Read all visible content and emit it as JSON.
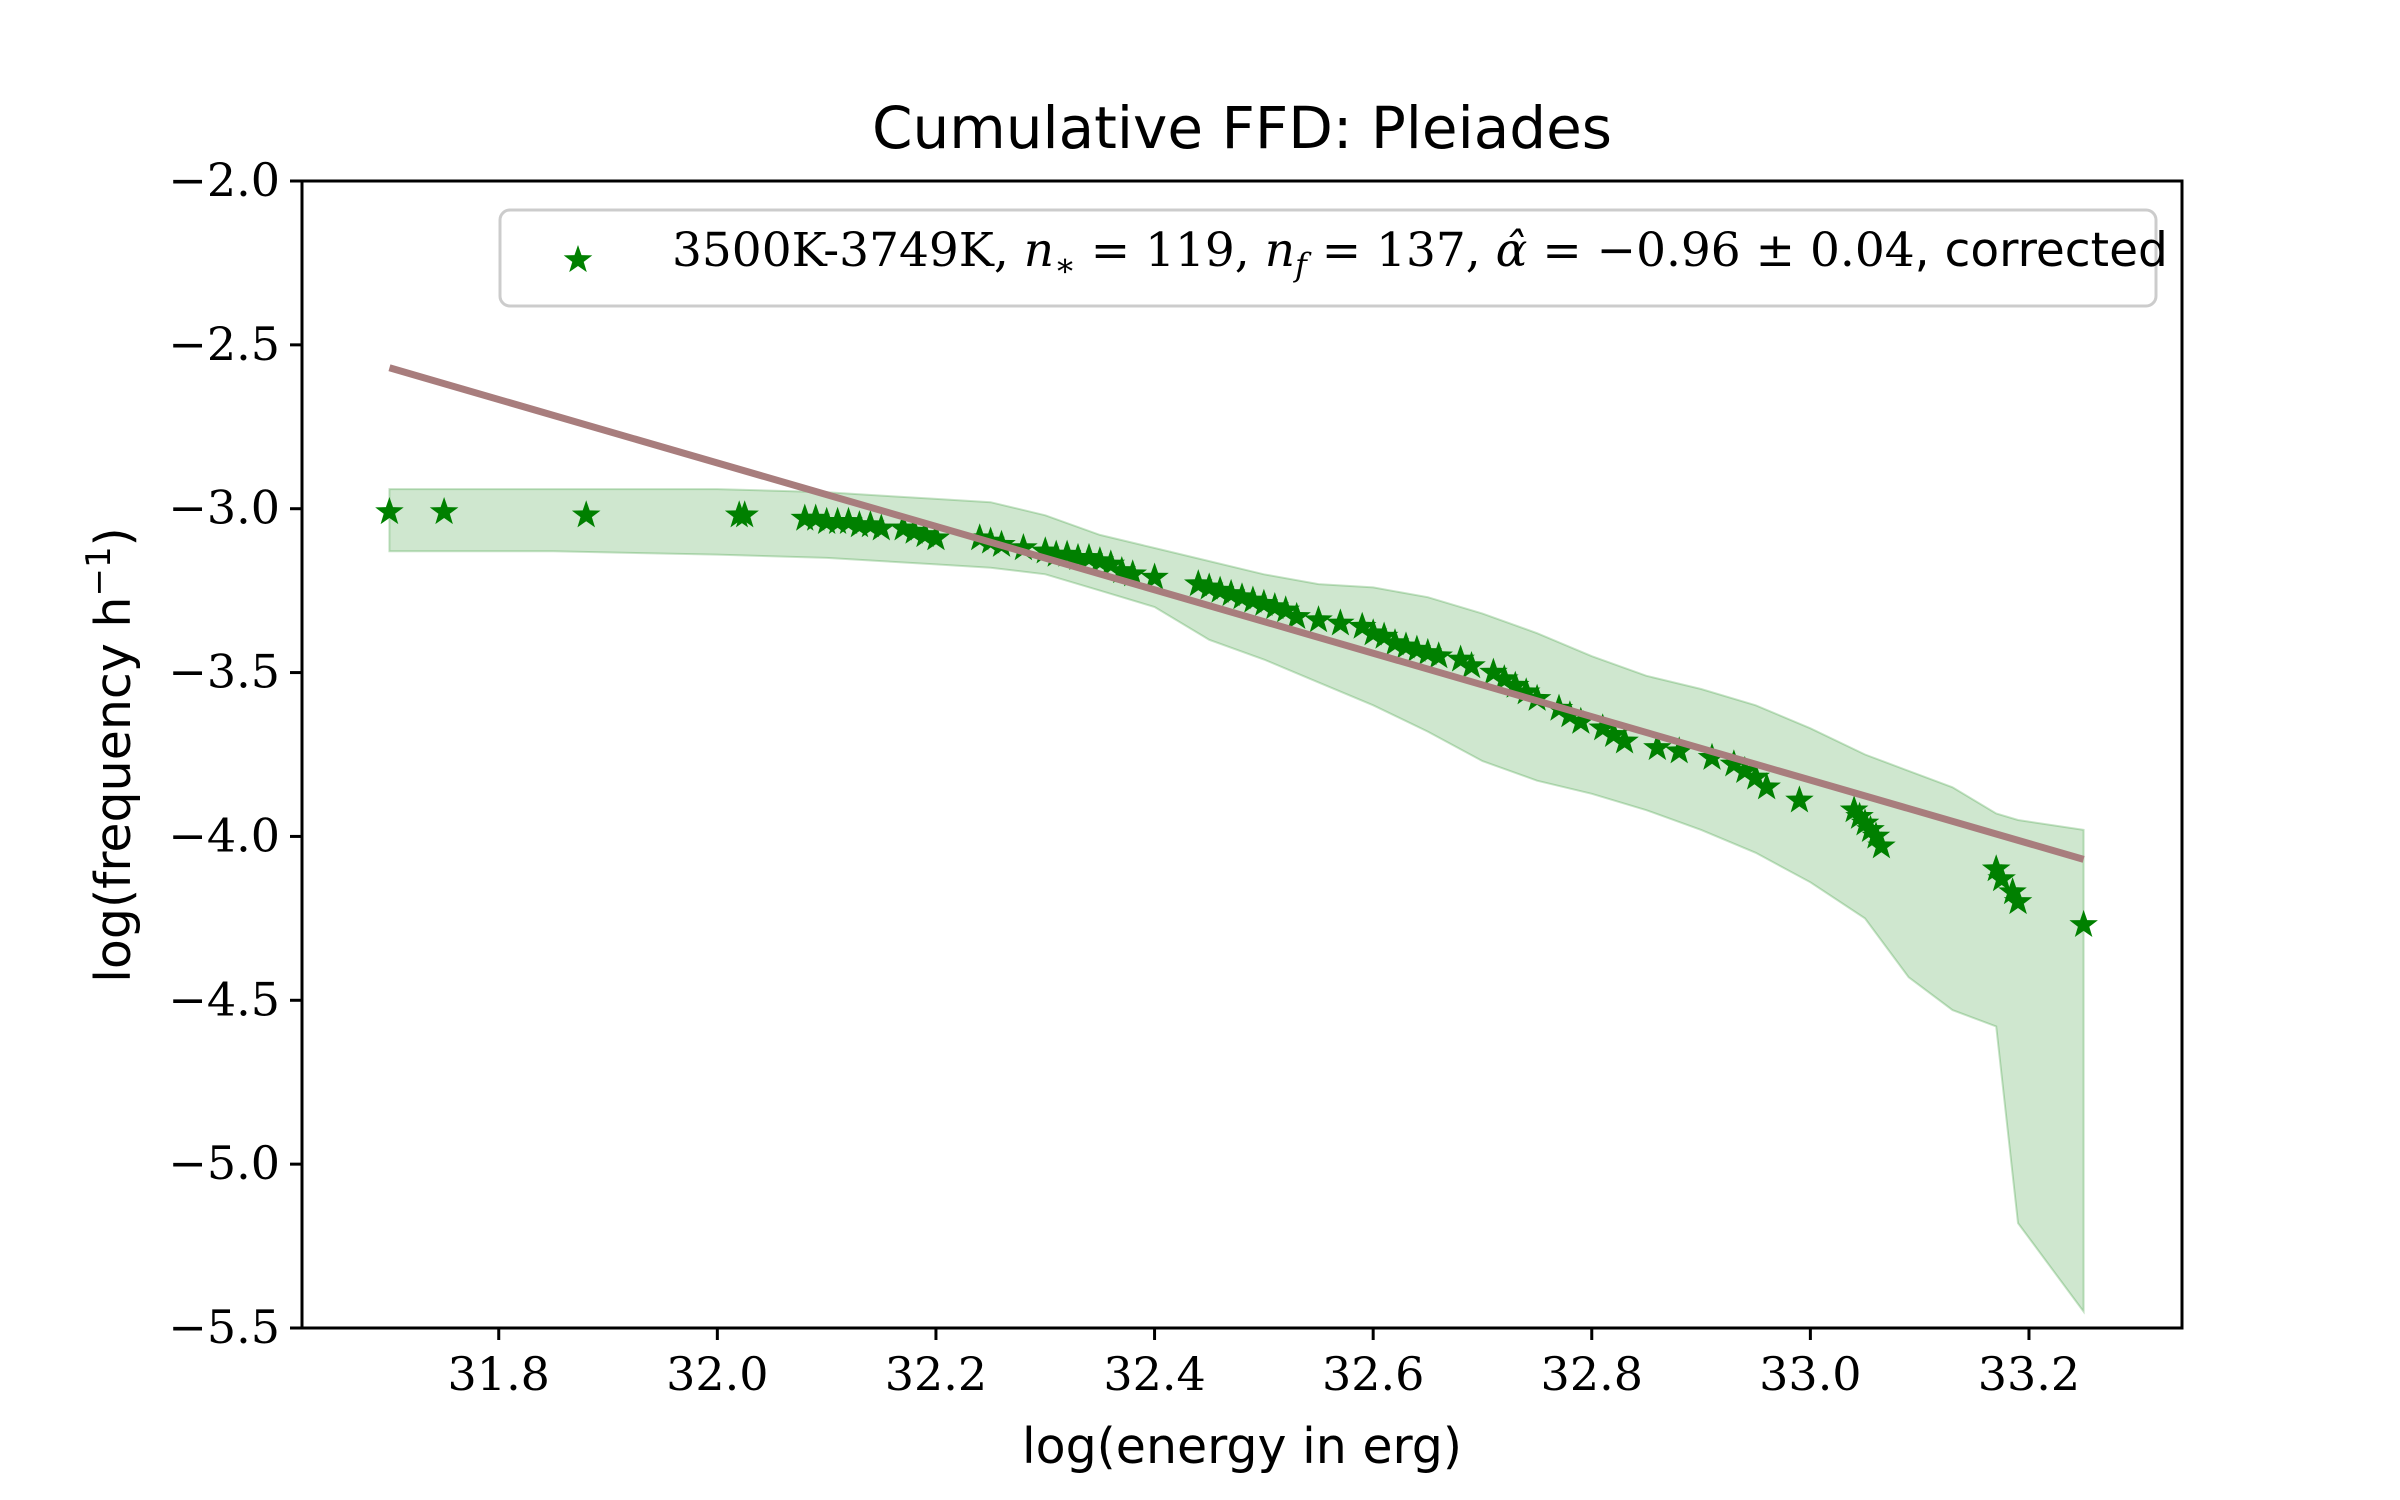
{
  "chart_data": {
    "type": "scatter",
    "title": "Cumulative FFD: Pleiades",
    "xlabel": "log(energy in erg)",
    "ylabel": {
      "text": "log(frequency h",
      "sup": "−1",
      "close": ")"
    },
    "xlim": [
      31.62,
      33.34
    ],
    "ylim": [
      -5.5,
      -2.0
    ],
    "x_ticks": [
      31.8,
      32.0,
      32.2,
      32.4,
      32.6,
      32.8,
      33.0,
      33.2
    ],
    "x_tick_labels": [
      "31.8",
      "32.0",
      "32.2",
      "32.4",
      "32.6",
      "32.8",
      "33.0",
      "33.2"
    ],
    "y_ticks": [
      -2.0,
      -2.5,
      -3.0,
      -3.5,
      -4.0,
      -4.5,
      -5.0,
      -5.5
    ],
    "y_tick_labels": [
      "−2.0",
      "−2.5",
      "−3.0",
      "−3.5",
      "−4.0",
      "−4.5",
      "−5.0",
      "−5.5"
    ],
    "grid": false,
    "legend_placement": "top-right",
    "legend": {
      "range": "3500K-3749K, ",
      "nstar_sym": "n",
      "nstar_sub": "∗",
      "nstar_val": " = 119, ",
      "nf_sym": "n",
      "nf_sub": "f",
      "nf_val": " = 137, ",
      "alpha_sym": "α̂",
      "alpha_val": " = −0.96 ± 0.04",
      "suffix": ", corrected"
    },
    "colors": {
      "points": "#008000",
      "band_fill": "#008000",
      "fit_line": "#a87d7d"
    },
    "series": [
      {
        "marker": "star",
        "x": [
          31.7,
          31.75,
          31.88,
          32.02,
          32.025,
          32.08,
          32.09,
          32.1,
          32.11,
          32.12,
          32.13,
          32.14,
          32.15,
          32.17,
          32.18,
          32.19,
          32.2,
          32.24,
          32.25,
          32.26,
          32.28,
          32.3,
          32.31,
          32.32,
          32.33,
          32.34,
          32.35,
          32.36,
          32.37,
          32.38,
          32.4,
          32.44,
          32.45,
          32.46,
          32.47,
          32.48,
          32.49,
          32.5,
          32.51,
          32.52,
          32.53,
          32.55,
          32.57,
          32.59,
          32.6,
          32.61,
          32.62,
          32.63,
          32.64,
          32.65,
          32.66,
          32.68,
          32.69,
          32.71,
          32.72,
          32.73,
          32.74,
          32.75,
          32.77,
          32.78,
          32.79,
          32.81,
          32.82,
          32.83,
          32.86,
          32.88,
          32.91,
          32.93,
          32.94,
          32.95,
          32.96,
          32.99,
          33.04,
          33.045,
          33.05,
          33.055,
          33.06,
          33.065,
          33.17,
          33.175,
          33.185,
          33.19,
          33.25
        ],
        "y": [
          -3.01,
          -3.01,
          -3.02,
          -3.02,
          -3.02,
          -3.03,
          -3.03,
          -3.04,
          -3.04,
          -3.04,
          -3.05,
          -3.05,
          -3.06,
          -3.06,
          -3.07,
          -3.08,
          -3.09,
          -3.09,
          -3.1,
          -3.11,
          -3.12,
          -3.13,
          -3.14,
          -3.14,
          -3.15,
          -3.15,
          -3.16,
          -3.17,
          -3.19,
          -3.2,
          -3.21,
          -3.23,
          -3.24,
          -3.25,
          -3.26,
          -3.27,
          -3.28,
          -3.29,
          -3.3,
          -3.31,
          -3.33,
          -3.34,
          -3.35,
          -3.36,
          -3.38,
          -3.39,
          -3.41,
          -3.42,
          -3.43,
          -3.44,
          -3.45,
          -3.46,
          -3.48,
          -3.5,
          -3.52,
          -3.54,
          -3.56,
          -3.58,
          -3.61,
          -3.63,
          -3.65,
          -3.67,
          -3.69,
          -3.71,
          -3.73,
          -3.74,
          -3.76,
          -3.78,
          -3.8,
          -3.82,
          -3.85,
          -3.89,
          -3.92,
          -3.94,
          -3.96,
          -3.98,
          -4.0,
          -4.03,
          -4.1,
          -4.13,
          -4.17,
          -4.2,
          -4.27
        ]
      }
    ],
    "fit_line": {
      "x": [
        31.7,
        33.25
      ],
      "y": [
        -2.57,
        -4.07
      ]
    },
    "uncertainty_band": {
      "x": [
        31.7,
        31.85,
        32.0,
        32.1,
        32.15,
        32.2,
        32.25,
        32.3,
        32.35,
        32.4,
        32.45,
        32.5,
        32.55,
        32.6,
        32.65,
        32.7,
        32.75,
        32.8,
        32.85,
        32.9,
        32.95,
        33.0,
        33.05,
        33.09,
        33.13,
        33.17,
        33.19,
        33.25
      ],
      "upper": [
        -2.94,
        -2.94,
        -2.94,
        -2.95,
        -2.96,
        -2.97,
        -2.98,
        -3.02,
        -3.08,
        -3.12,
        -3.16,
        -3.2,
        -3.23,
        -3.24,
        -3.27,
        -3.32,
        -3.38,
        -3.45,
        -3.51,
        -3.55,
        -3.6,
        -3.67,
        -3.75,
        -3.8,
        -3.85,
        -3.93,
        -3.95,
        -3.98
      ],
      "lower": [
        -3.13,
        -3.13,
        -3.14,
        -3.15,
        -3.16,
        -3.17,
        -3.18,
        -3.2,
        -3.25,
        -3.3,
        -3.4,
        -3.46,
        -3.53,
        -3.6,
        -3.68,
        -3.77,
        -3.83,
        -3.87,
        -3.92,
        -3.98,
        -4.05,
        -4.14,
        -4.25,
        -4.43,
        -4.53,
        -4.58,
        -5.18,
        -5.45
      ]
    }
  }
}
